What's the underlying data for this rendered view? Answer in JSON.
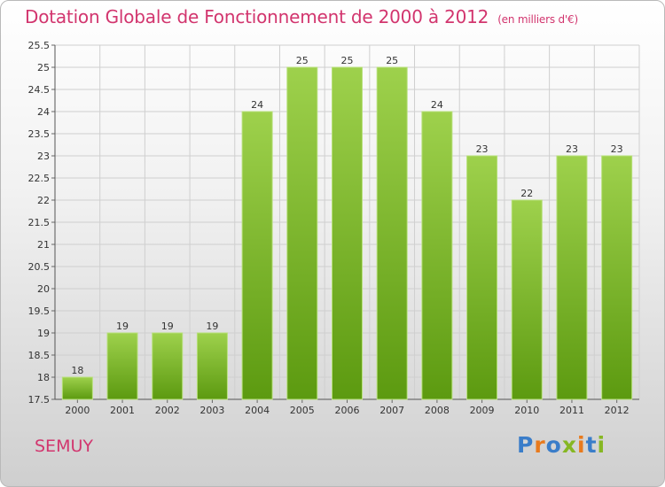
{
  "header": {
    "title": "Dotation Globale de Fonctionnement de 2000 à 2012",
    "unit": "(en milliers d'€)"
  },
  "footer": {
    "commune": "SEMUY",
    "logo": [
      "P",
      "r",
      "o",
      "x",
      "i",
      "t",
      "i"
    ]
  },
  "colors": {
    "title": "#d2356e",
    "bar_light": "#9ed14c",
    "bar_dark": "#5c9a10",
    "logo": [
      "#3a7dc9",
      "#e87a1d",
      "#3a7dc9",
      "#86b723",
      "#e87a1d",
      "#3a7dc9",
      "#86b723"
    ]
  },
  "chart_data": {
    "type": "bar",
    "title": "Dotation Globale de Fonctionnement de 2000 à 2012",
    "xlabel": "",
    "ylabel": "(en milliers d'€)",
    "ylim": [
      17.5,
      25.5
    ],
    "yticks": [
      "17.5",
      "18",
      "18.5",
      "19",
      "19.5",
      "20",
      "20.5",
      "21",
      "21.5",
      "22",
      "22.5",
      "23",
      "23.5",
      "24",
      "24.5",
      "25",
      "25.5"
    ],
    "grid": true,
    "categories": [
      "2000",
      "2001",
      "2002",
      "2003",
      "2004",
      "2005",
      "2006",
      "2007",
      "2008",
      "2009",
      "2010",
      "2011",
      "2012"
    ],
    "values": [
      18,
      19,
      19,
      19,
      24,
      25,
      25,
      25,
      24,
      23,
      22,
      23,
      23
    ],
    "labels": [
      "18",
      "19",
      "19",
      "19",
      "24",
      "25",
      "25",
      "25",
      "24",
      "23",
      "22",
      "23",
      "23"
    ]
  }
}
